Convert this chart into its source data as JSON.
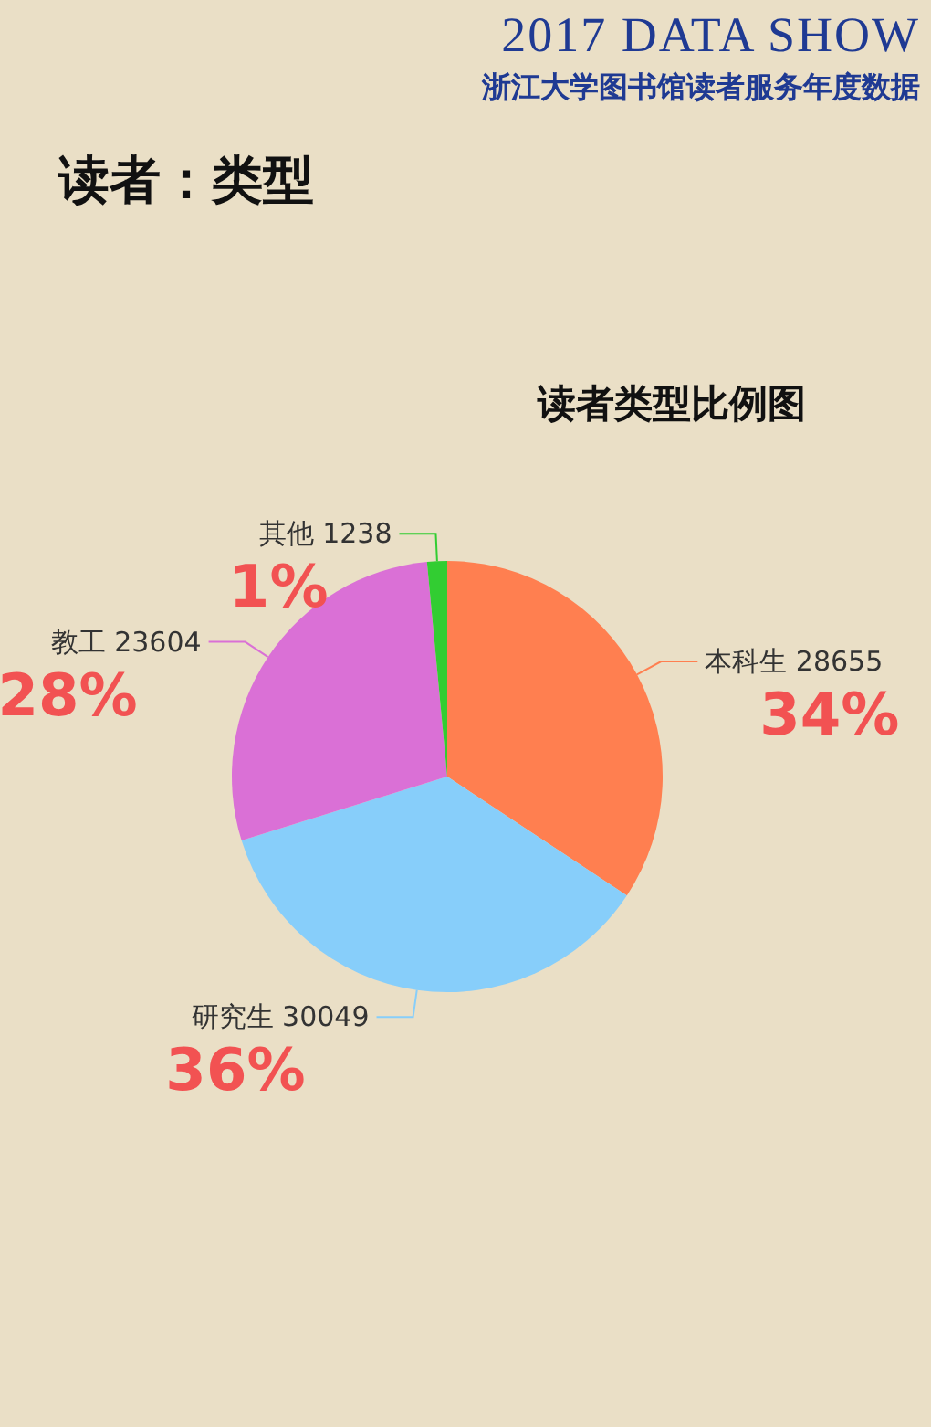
{
  "chart_data": {
    "type": "pie",
    "title": "读者类型比例图",
    "annotations": [
      "2017 DATA SHOW",
      "浙江大学图书馆读者服务年度数据",
      "读者：类型"
    ],
    "categories": [
      "本科生 28655",
      "研究生 30049",
      "教工 23604",
      "其他 1238"
    ],
    "values": [
      34.3,
      35.9,
      28.3,
      1.5
    ],
    "colors": [
      "#ff7f50",
      "#87cefa",
      "#da70d6",
      "#32cd32"
    ],
    "value_labels": [
      "34%",
      "36%",
      "28%",
      "1%"
    ]
  }
}
